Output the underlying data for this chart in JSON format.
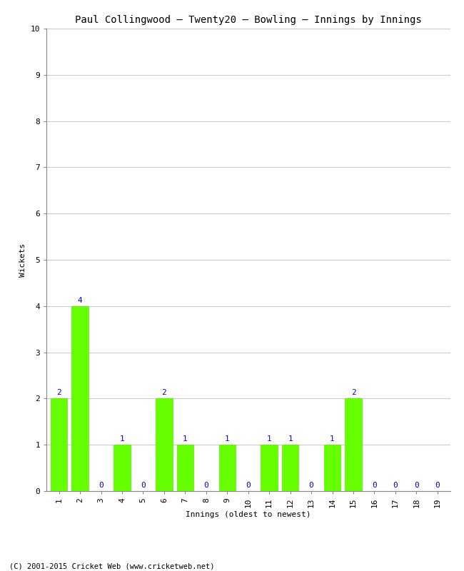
{
  "title": "Paul Collingwood – Twenty20 – Bowling – Innings by Innings",
  "xlabel": "Innings (oldest to newest)",
  "ylabel": "Wickets",
  "categories": [
    1,
    2,
    3,
    4,
    5,
    6,
    7,
    8,
    9,
    10,
    11,
    12,
    13,
    14,
    15,
    16,
    17,
    18,
    19
  ],
  "values": [
    2,
    4,
    0,
    1,
    0,
    2,
    1,
    0,
    1,
    0,
    1,
    1,
    0,
    1,
    2,
    0,
    0,
    0,
    0
  ],
  "bar_color": "#66ff00",
  "bar_edge_color": "#55ee00",
  "label_color": "#0000cc",
  "background_color": "#ffffff",
  "plot_bg_color": "#ffffff",
  "ylim": [
    0,
    10
  ],
  "yticks": [
    0,
    1,
    2,
    3,
    4,
    5,
    6,
    7,
    8,
    9,
    10
  ],
  "grid_color": "#cccccc",
  "title_fontsize": 10,
  "axis_label_fontsize": 8,
  "tick_label_fontsize": 8,
  "annotation_fontsize": 8,
  "footer": "(C) 2001-2015 Cricket Web (www.cricketweb.net)"
}
